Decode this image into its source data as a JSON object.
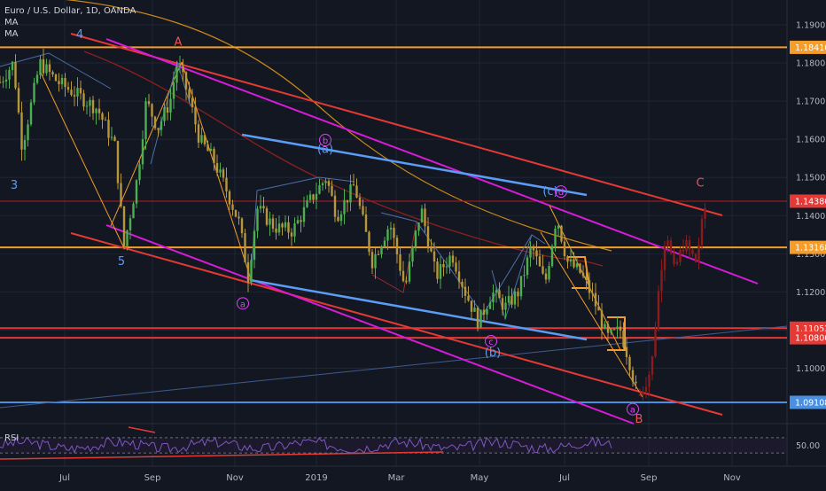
{
  "header": {
    "symbol_line": "Euro / U.S. Dollar, 1D, OANDA",
    "ind1": "MA",
    "ind2": "MA"
  },
  "chart_data": {
    "type": "candlestick",
    "symbol": "Euro / U.S. Dollar",
    "interval": "1D",
    "exchange": "OANDA",
    "ylim": [
      1.0855,
      1.1965
    ],
    "y_ticks": [
      1.19,
      1.18,
      1.17,
      1.16,
      1.15,
      1.14,
      1.13,
      1.12,
      1.11,
      1.1
    ],
    "x_ticks": [
      "Jul",
      "Sep",
      "Nov",
      "2019",
      "Mar",
      "May",
      "Jul",
      "Sep",
      "Nov"
    ],
    "price_labels": [
      {
        "value": 1.1841,
        "text": "1.18410",
        "color": "#f59d2a"
      },
      {
        "value": 1.1438,
        "text": "1.14380",
        "color": "#e53935"
      },
      {
        "value": 1.13168,
        "text": "1.13168",
        "color": "#f59d2a"
      },
      {
        "value": 1.11052,
        "text": "1.11052",
        "color": "#e53935"
      },
      {
        "value": 1.108,
        "text": "1.10800",
        "color": "#e53935"
      },
      {
        "value": 1.09108,
        "text": "1.09108",
        "color": "#4a90e2"
      }
    ],
    "horizontal_levels": [
      {
        "value": 1.1841,
        "color": "#f59d2a"
      },
      {
        "value": 1.13168,
        "color": "#f59d2a"
      },
      {
        "value": 1.09108,
        "color": "#4a90e2"
      },
      {
        "value": 1.11052,
        "color": "#e53935"
      },
      {
        "value": 1.108,
        "color": "#e53935"
      },
      {
        "value": 1.1438,
        "color": "#b71c1c"
      }
    ],
    "price_path": [
      {
        "t": 0,
        "p": 1.175
      },
      {
        "t": 15,
        "p": 1.18
      },
      {
        "t": 25,
        "p": 1.158
      },
      {
        "t": 45,
        "p": 1.18
      },
      {
        "t": 65,
        "p": 1.175
      },
      {
        "t": 85,
        "p": 1.172
      },
      {
        "t": 110,
        "p": 1.168
      },
      {
        "t": 130,
        "p": 1.158
      },
      {
        "t": 140,
        "p": 1.132
      },
      {
        "t": 155,
        "p": 1.15
      },
      {
        "t": 165,
        "p": 1.17
      },
      {
        "t": 178,
        "p": 1.163
      },
      {
        "t": 192,
        "p": 1.17
      },
      {
        "t": 200,
        "p": 1.18
      },
      {
        "t": 212,
        "p": 1.172
      },
      {
        "t": 225,
        "p": 1.16
      },
      {
        "t": 240,
        "p": 1.155
      },
      {
        "t": 255,
        "p": 1.147
      },
      {
        "t": 270,
        "p": 1.138
      },
      {
        "t": 280,
        "p": 1.124
      },
      {
        "t": 290,
        "p": 1.142
      },
      {
        "t": 310,
        "p": 1.137
      },
      {
        "t": 330,
        "p": 1.136
      },
      {
        "t": 350,
        "p": 1.144
      },
      {
        "t": 368,
        "p": 1.15
      },
      {
        "t": 380,
        "p": 1.14
      },
      {
        "t": 400,
        "p": 1.148
      },
      {
        "t": 420,
        "p": 1.128
      },
      {
        "t": 440,
        "p": 1.138
      },
      {
        "t": 457,
        "p": 1.121
      },
      {
        "t": 475,
        "p": 1.142
      },
      {
        "t": 492,
        "p": 1.124
      },
      {
        "t": 510,
        "p": 1.13
      },
      {
        "t": 525,
        "p": 1.12
      },
      {
        "t": 540,
        "p": 1.112
      },
      {
        "t": 555,
        "p": 1.12
      },
      {
        "t": 570,
        "p": 1.116
      },
      {
        "t": 585,
        "p": 1.12
      },
      {
        "t": 600,
        "p": 1.132
      },
      {
        "t": 615,
        "p": 1.122
      },
      {
        "t": 628,
        "p": 1.14
      },
      {
        "t": 640,
        "p": 1.128
      },
      {
        "t": 655,
        "p": 1.125
      },
      {
        "t": 670,
        "p": 1.118
      },
      {
        "t": 685,
        "p": 1.108
      },
      {
        "t": 700,
        "p": 1.11
      },
      {
        "t": 710,
        "p": 1.102
      },
      {
        "t": 720,
        "p": 1.092
      }
    ],
    "projection_path": [
      {
        "t": 720,
        "p": 1.092
      },
      {
        "t": 735,
        "p": 1.1
      },
      {
        "t": 745,
        "p": 1.125
      },
      {
        "t": 752,
        "p": 1.137
      },
      {
        "t": 760,
        "p": 1.125
      },
      {
        "t": 772,
        "p": 1.133
      },
      {
        "t": 785,
        "p": 1.128
      },
      {
        "t": 797,
        "p": 1.144
      }
    ],
    "wave_labels": [
      {
        "text": "4",
        "t": 90,
        "p": 1.1875,
        "color": "#5b9cf6"
      },
      {
        "text": "A",
        "t": 201,
        "p": 1.1855,
        "color": "#ef5350"
      },
      {
        "text": "3",
        "t": 16,
        "p": 1.148,
        "color": "#5b9cf6"
      },
      {
        "text": "5",
        "t": 137,
        "p": 1.128,
        "color": "#5b9cf6"
      },
      {
        "text": "b",
        "t": 367,
        "p": 1.1598,
        "color": "#e040fb",
        "circled": true
      },
      {
        "text": "(a)",
        "t": 367,
        "p": 1.1574,
        "color": "#5b9cf6"
      },
      {
        "text": "a",
        "t": 274,
        "p": 1.117,
        "color": "#e040fb",
        "circled": true
      },
      {
        "text": "(c)",
        "t": 621,
        "p": 1.1463,
        "color": "#5b9cf6"
      },
      {
        "text": "d",
        "t": 633,
        "p": 1.1463,
        "color": "#e040fb",
        "circled": true
      },
      {
        "text": "c",
        "t": 554,
        "p": 1.1071,
        "color": "#e040fb",
        "circled": true
      },
      {
        "text": "(b)",
        "t": 556,
        "p": 1.1041,
        "color": "#5b9cf6"
      },
      {
        "text": "C",
        "t": 790,
        "p": 1.1485,
        "color": "#ef5350"
      },
      {
        "text": "a",
        "t": 714,
        "p": 1.0893,
        "color": "#e040fb",
        "circled": true
      },
      {
        "text": "B",
        "t": 721,
        "p": 1.0867,
        "color": "#ef5350"
      }
    ],
    "rsi": {
      "label": "RSI",
      "level_text": "50.00"
    }
  }
}
